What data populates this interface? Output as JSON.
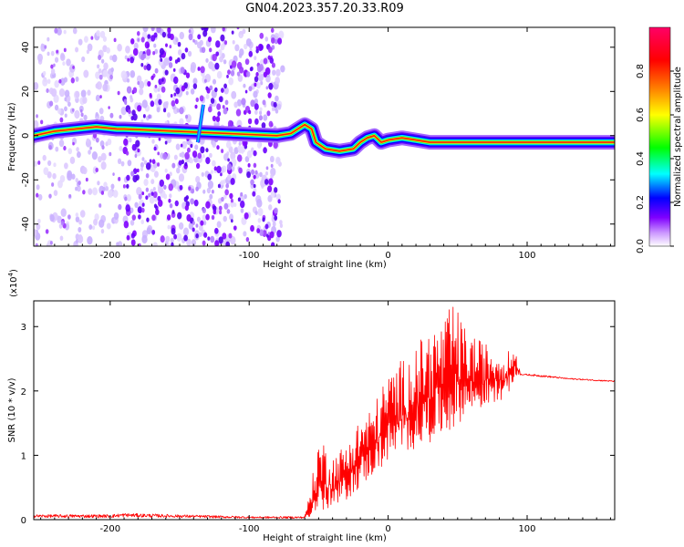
{
  "title": "GN04.2023.357.20.33.R09",
  "chart_data": [
    {
      "type": "heatmap",
      "xlabel": "Height of straight line (km)",
      "ylabel": "Frequency (Hz)",
      "xlim": [
        -255,
        163
      ],
      "ylim": [
        -50,
        49
      ],
      "xticks": [
        -200,
        -100,
        0,
        100
      ],
      "yticks": [
        -40,
        -20,
        0,
        20,
        40
      ],
      "grid": false,
      "colorbar": {
        "label": "Normalized spectral amplitude",
        "range": [
          0,
          1
        ],
        "ticks": [
          "0.0",
          "0.2",
          "0.4",
          "0.6",
          "0.8"
        ],
        "tick_values": [
          0.0,
          0.2,
          0.4,
          0.6,
          0.8
        ],
        "colors": [
          "#ffffff",
          "#cc99ff",
          "#8000ff",
          "#0000ff",
          "#00ffff",
          "#00ff00",
          "#ffff00",
          "#ff8000",
          "#ff0000",
          "#ff0066"
        ]
      },
      "main_line": {
        "description_free": true,
        "points": [
          [
            -255,
            0
          ],
          [
            -240,
            2
          ],
          [
            -225,
            3
          ],
          [
            -210,
            4
          ],
          [
            -195,
            3
          ],
          [
            -190,
            3
          ],
          [
            -80,
            0
          ],
          [
            -70,
            1
          ],
          [
            -65,
            3
          ],
          [
            -60,
            5
          ],
          [
            -55,
            3
          ],
          [
            -52,
            -3
          ],
          [
            -45,
            -6
          ],
          [
            -35,
            -7
          ],
          [
            -25,
            -6
          ],
          [
            -20,
            -3
          ],
          [
            -15,
            -1
          ],
          [
            -10,
            0
          ],
          [
            -5,
            -3
          ],
          [
            0,
            -2
          ],
          [
            10,
            -1
          ],
          [
            20,
            -2
          ],
          [
            30,
            -3
          ],
          [
            50,
            -3
          ],
          [
            80,
            -3
          ],
          [
            100,
            -3
          ],
          [
            130,
            -3
          ],
          [
            163,
            -3
          ]
        ]
      }
    },
    {
      "type": "line",
      "xlabel": "Height of straight line (km)",
      "ylabel": "SNR (10 * v/v)",
      "y_scale_label": "(x10",
      "y_scale_exp": "4",
      "y_scale_close": ")",
      "xlim": [
        -255,
        163
      ],
      "ylim": [
        0,
        3.4
      ],
      "xticks": [
        -200,
        -100,
        0,
        100
      ],
      "yticks": [
        0,
        1,
        2,
        3
      ],
      "grid": false,
      "series": [
        {
          "color": "#ff0000",
          "envelope": [
            [
              -255,
              0.03,
              0.08
            ],
            [
              -200,
              0.03,
              0.08
            ],
            [
              -190,
              0.04,
              0.1
            ],
            [
              -100,
              0.02,
              0.05
            ],
            [
              -60,
              0.02,
              0.05
            ],
            [
              -55,
              0.05,
              0.6
            ],
            [
              -50,
              0.05,
              1.3
            ],
            [
              -45,
              0.1,
              1.2
            ],
            [
              -40,
              0.15,
              1.0
            ],
            [
              -30,
              0.3,
              1.2
            ],
            [
              -20,
              0.5,
              1.6
            ],
            [
              -10,
              0.7,
              1.8
            ],
            [
              0,
              0.9,
              2.3
            ],
            [
              10,
              1.0,
              2.5
            ],
            [
              20,
              1.1,
              2.7
            ],
            [
              30,
              1.2,
              3.0
            ],
            [
              40,
              1.3,
              3.1
            ],
            [
              47,
              1.4,
              3.4
            ],
            [
              55,
              1.6,
              3.0
            ],
            [
              65,
              1.7,
              2.8
            ],
            [
              75,
              1.8,
              2.7
            ],
            [
              85,
              1.9,
              2.6
            ],
            [
              92,
              2.2,
              2.7
            ],
            [
              95,
              2.25,
              2.27
            ],
            [
              110,
              2.22,
              2.25
            ],
            [
              130,
              2.18,
              2.2
            ],
            [
              163,
              2.14,
              2.16
            ]
          ]
        }
      ]
    }
  ]
}
